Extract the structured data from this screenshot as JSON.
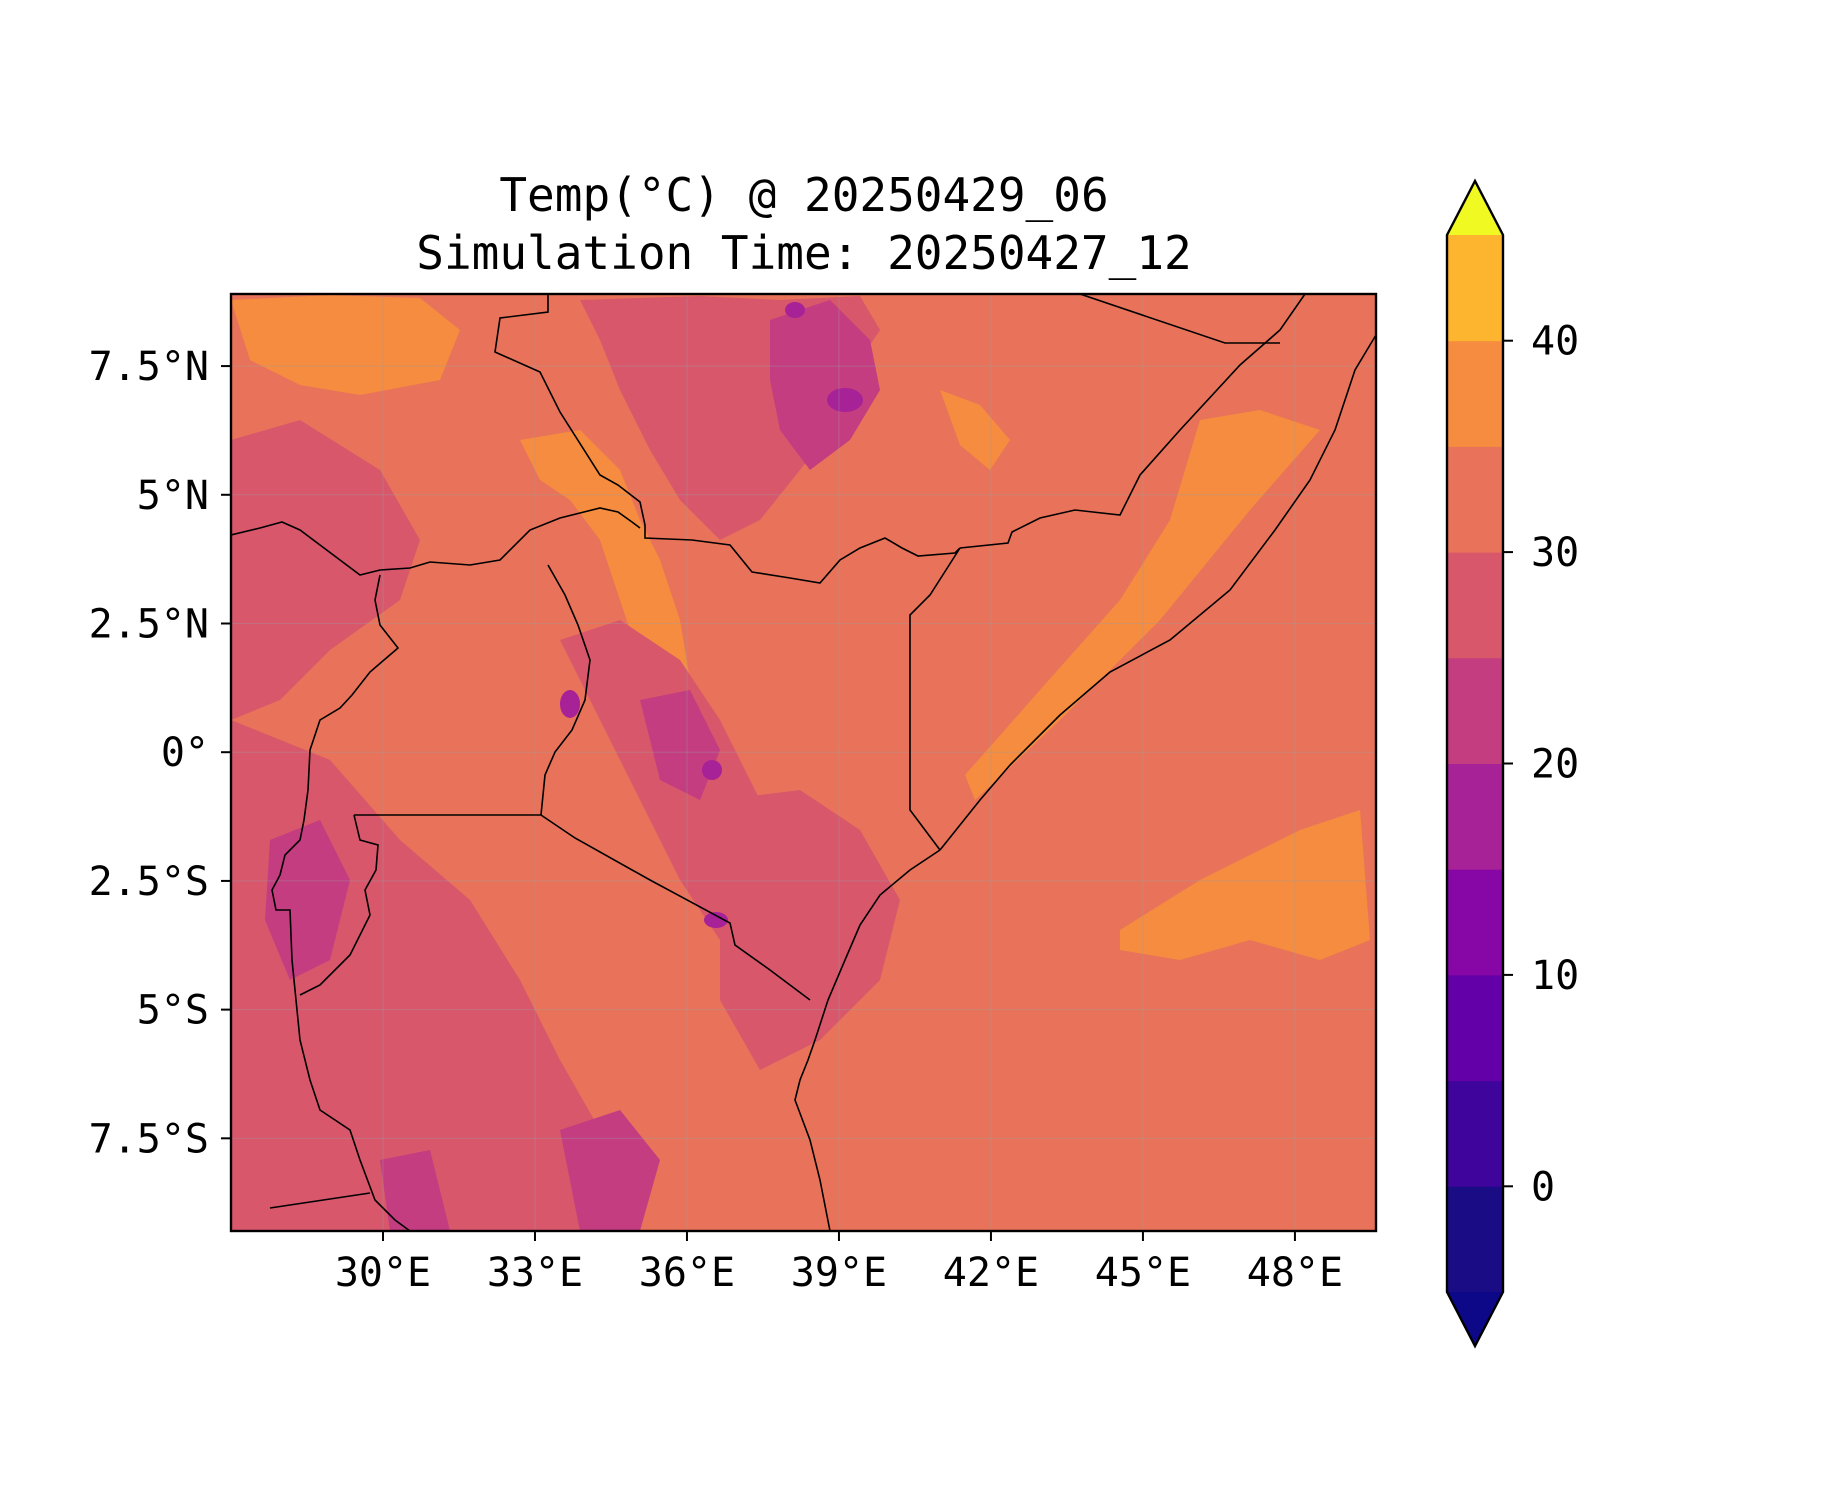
{
  "title": {
    "line1": "Temp(°C) @ 20250429_06",
    "line2": "Simulation Time: 20250427_12"
  },
  "map": {
    "variable": "Temp",
    "units": "°C",
    "lon_range": [
      27.0,
      49.6
    ],
    "lat_range": [
      -9.3,
      8.9
    ],
    "lon_ticks": [
      {
        "value": 30,
        "label": "30°E"
      },
      {
        "value": 33,
        "label": "33°E"
      },
      {
        "value": 36,
        "label": "36°E"
      },
      {
        "value": 39,
        "label": "39°E"
      },
      {
        "value": 42,
        "label": "42°E"
      },
      {
        "value": 45,
        "label": "45°E"
      },
      {
        "value": 48,
        "label": "48°E"
      }
    ],
    "lat_ticks": [
      {
        "value": 7.5,
        "label": "7.5°N"
      },
      {
        "value": 5,
        "label": "5°N"
      },
      {
        "value": 2.5,
        "label": "2.5°N"
      },
      {
        "value": 0,
        "label": "0°"
      },
      {
        "value": -2.5,
        "label": "2.5°S"
      },
      {
        "value": -5,
        "label": "5°S"
      },
      {
        "value": -7.5,
        "label": "7.5°S"
      }
    ],
    "gridlines": true,
    "background_color": "#e8735a"
  },
  "colorbar": {
    "colormap": "plasma",
    "range": [
      -5,
      45
    ],
    "extend": "both",
    "levels": [
      -5,
      0,
      5,
      10,
      15,
      20,
      25,
      30,
      35,
      40,
      45
    ],
    "colors": [
      "#1a0c85",
      "#3e049c",
      "#6300a7",
      "#8606a6",
      "#a72197",
      "#c33d80",
      "#d8576b",
      "#e8735a",
      "#f58c3f",
      "#fdb42f",
      "#f0e525"
    ],
    "under_color": "#0d0887",
    "over_color": "#f0f921",
    "ticks": [
      {
        "value": 0,
        "label": "0"
      },
      {
        "value": 10,
        "label": "10"
      },
      {
        "value": 20,
        "label": "20"
      },
      {
        "value": 30,
        "label": "30"
      },
      {
        "value": 40,
        "label": "40"
      }
    ]
  }
}
